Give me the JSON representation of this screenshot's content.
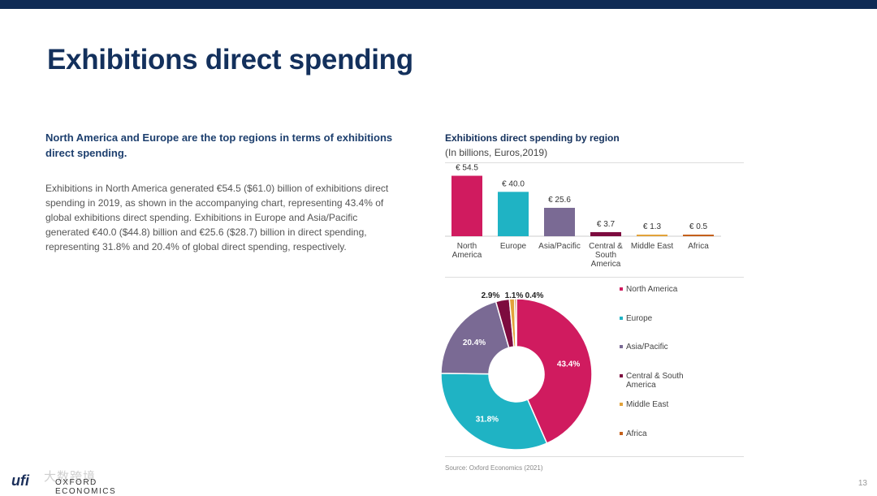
{
  "slide": {
    "title": "Exhibitions direct spending",
    "lead": "North America and Europe are the top regions in terms of exhibitions direct spending.",
    "body": "Exhibitions in North America generated €54.5 ($61.0) billion of exhibitions direct spending in 2019, as shown in the accompanying chart, representing 43.4% of global exhibitions direct spending. Exhibitions in Europe and Asia/Pacific generated €40.0 ($44.8) billion and €25.6 ($28.7) billion in direct spending, representing 31.8% and 20.4% of global direct spending, respectively.",
    "page_number": "13",
    "source": "Source: Oxford Economics (2021)"
  },
  "logos": {
    "ufi": "ufi",
    "oxford": "OXFORD ECONOMICS",
    "watermark": "大数跨境"
  },
  "colors": {
    "header_bar": "#0f2b55",
    "title": "#13305c"
  },
  "chart_data": [
    {
      "type": "bar",
      "title": "Exhibitions direct spending by region",
      "subtitle": "(In billions, Euros,2019)",
      "categories": [
        "North America",
        "Europe",
        "Asia/Pacific",
        "Central & South America",
        "Middle East",
        "Africa"
      ],
      "category_lines": [
        [
          "North",
          "America"
        ],
        [
          "Europe"
        ],
        [
          "Asia/Pacific"
        ],
        [
          "Central &",
          "South",
          "America"
        ],
        [
          "Middle East"
        ],
        [
          "Africa"
        ]
      ],
      "values": [
        54.5,
        40.0,
        25.6,
        3.7,
        1.3,
        0.5
      ],
      "data_labels": [
        "€ 54.5",
        "€ 40.0",
        "€ 25.6",
        "€ 3.7",
        "€ 1.3",
        "€ 0.5"
      ],
      "colors": [
        "#d01b5f",
        "#1fb3c4",
        "#7a6a94",
        "#7d0b3f",
        "#e2a23a",
        "#c4601b"
      ],
      "ylim": [
        0,
        60
      ],
      "grid": false
    },
    {
      "type": "pie",
      "donut": true,
      "labels": [
        "North America",
        "Europe",
        "Asia/Pacific",
        "Central & South America",
        "Middle East",
        "Africa"
      ],
      "legend_lines": [
        [
          "North America"
        ],
        [
          "Europe"
        ],
        [
          "Asia/Pacific"
        ],
        [
          "Central & South",
          "America"
        ],
        [
          "Middle East"
        ],
        [
          "Africa"
        ]
      ],
      "values": [
        43.4,
        31.8,
        20.4,
        2.9,
        1.1,
        0.4
      ],
      "data_labels": [
        "43.4%",
        "31.8%",
        "20.4%",
        "2.9%",
        "1.1%",
        "0.4%"
      ],
      "colors": [
        "#d01b5f",
        "#1fb3c4",
        "#7a6a94",
        "#7d0b3f",
        "#e2a23a",
        "#c4601b"
      ],
      "legend_position": "right"
    }
  ]
}
